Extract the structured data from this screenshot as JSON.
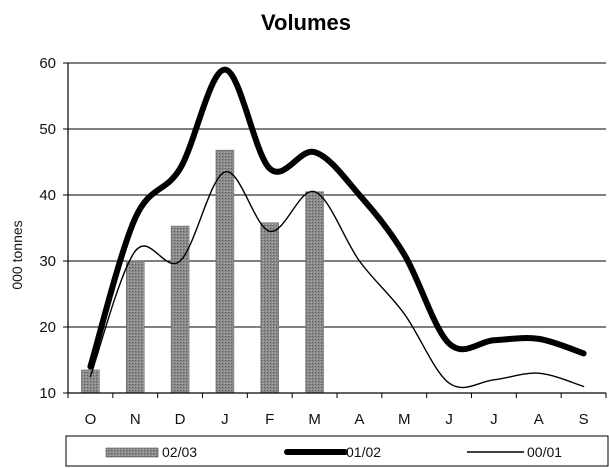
{
  "chart_data": {
    "type": "bar+line",
    "title": "Volumes",
    "xlabel": "",
    "ylabel": "000 tonnes",
    "ylim": [
      10,
      60
    ],
    "yticks": [
      10,
      20,
      30,
      40,
      50,
      60
    ],
    "grid": "horizontal",
    "legend_placement": "bottom",
    "categories": [
      "O",
      "N",
      "D",
      "J",
      "F",
      "M",
      "A",
      "M",
      "J",
      "J",
      "A",
      "S"
    ],
    "series": [
      {
        "name": "02/03",
        "kind": "bar",
        "color": "#7a7a7a",
        "values": [
          13.5,
          30,
          35.3,
          46.8,
          35.8,
          40.5,
          null,
          null,
          null,
          null,
          null,
          null
        ]
      },
      {
        "name": "01/02",
        "kind": "line",
        "weight": "thick",
        "color": "#000000",
        "values": [
          14,
          36.5,
          44,
          59,
          44,
          46.5,
          40,
          31,
          17.5,
          18,
          18.2,
          16
        ]
      },
      {
        "name": "00/01",
        "kind": "line",
        "weight": "thin",
        "color": "#000000",
        "values": [
          12.5,
          31.5,
          30,
          43.5,
          34.5,
          40.5,
          30,
          22,
          11.5,
          12,
          13,
          11
        ]
      }
    ]
  }
}
